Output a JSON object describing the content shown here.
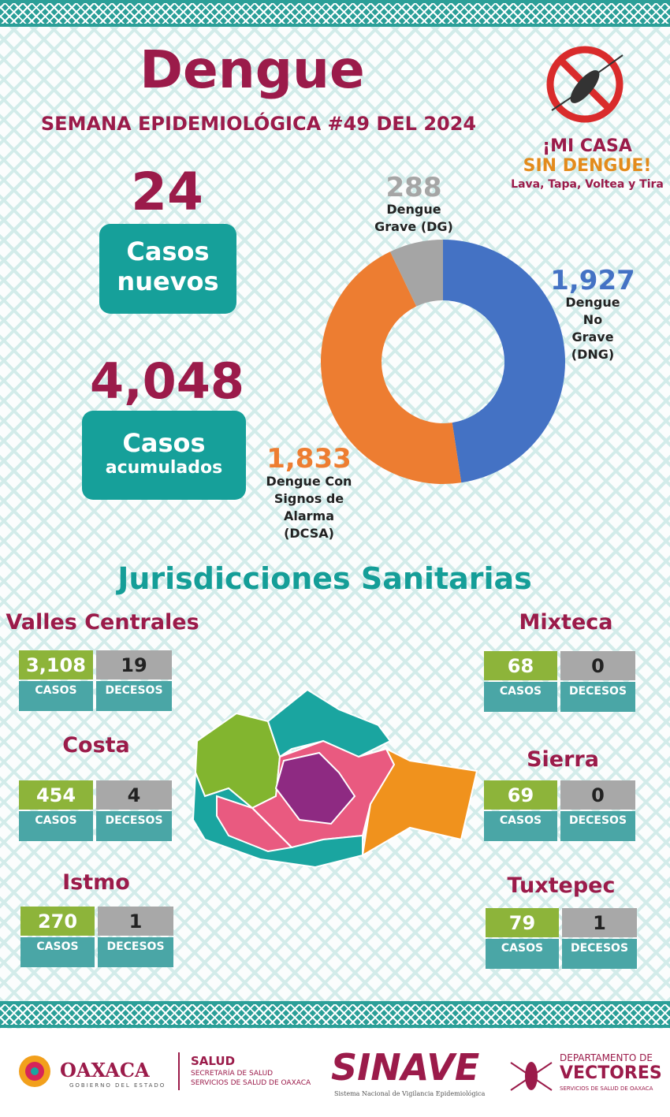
{
  "header": {
    "title": "Dengue",
    "subtitle": "SEMANA EPIDEMIOLÓGICA #49 DEL 2024"
  },
  "campaign": {
    "line1": "¡MI CASA",
    "line2": "SIN DENGUE!",
    "slogan": "Lava, Tapa, Voltea y Tira"
  },
  "stats": {
    "new_cases": {
      "number": "24",
      "label1": "Casos",
      "label2": "nuevos"
    },
    "total_cases": {
      "number": "4,048",
      "label1": "Casos",
      "label2": "acumulados"
    }
  },
  "chart_data": {
    "type": "pie",
    "categories": [
      "Dengue No Grave (DNG)",
      "Dengue Con Signos de Alarma (DCSA)",
      "Dengue Grave (DG)"
    ],
    "values": [
      1927,
      1833,
      288
    ],
    "value_labels": [
      "1,927",
      "1,833",
      "288"
    ],
    "colors": [
      "#4472c4",
      "#ed7d31",
      "#a5a5a5"
    ]
  },
  "section_title": "Jurisdicciones Sanitarias",
  "jurisdictions": [
    {
      "name": "Valles Centrales",
      "cases": "3,108",
      "deaths": "19",
      "cases_label": "CASOS",
      "deaths_label": "DECESOS"
    },
    {
      "name": "Costa",
      "cases": "454",
      "deaths": "4",
      "cases_label": "CASOS",
      "deaths_label": "DECESOS"
    },
    {
      "name": "Istmo",
      "cases": "270",
      "deaths": "1",
      "cases_label": "CASOS",
      "deaths_label": "DECESOS"
    },
    {
      "name": "Mixteca",
      "cases": "68",
      "deaths": "0",
      "cases_label": "CASOS",
      "deaths_label": "DECESOS"
    },
    {
      "name": "Sierra",
      "cases": "69",
      "deaths": "0",
      "cases_label": "CASOS",
      "deaths_label": "DECESOS"
    },
    {
      "name": "Tuxtepec",
      "cases": "79",
      "deaths": "1",
      "cases_label": "CASOS",
      "deaths_label": "DECESOS"
    }
  ],
  "footer": {
    "oaxaca": "OAXACA",
    "oaxaca_sub": "GOBIERNO DEL ESTADO",
    "salud": "SALUD",
    "salud_sub1": "SECRETARÍA DE SALUD",
    "salud_sub2": "SERVICIOS DE SALUD DE OAXACA",
    "sinave": "SINAVE",
    "sinave_sub": "Sistema Nacional de Vigilancia Epidemiológica",
    "vectores_sub1": "DEPARTAMENTO DE",
    "vectores": "VECTORES",
    "vectores_sub2": "SERVICIOS DE SALUD DE OAXACA"
  }
}
